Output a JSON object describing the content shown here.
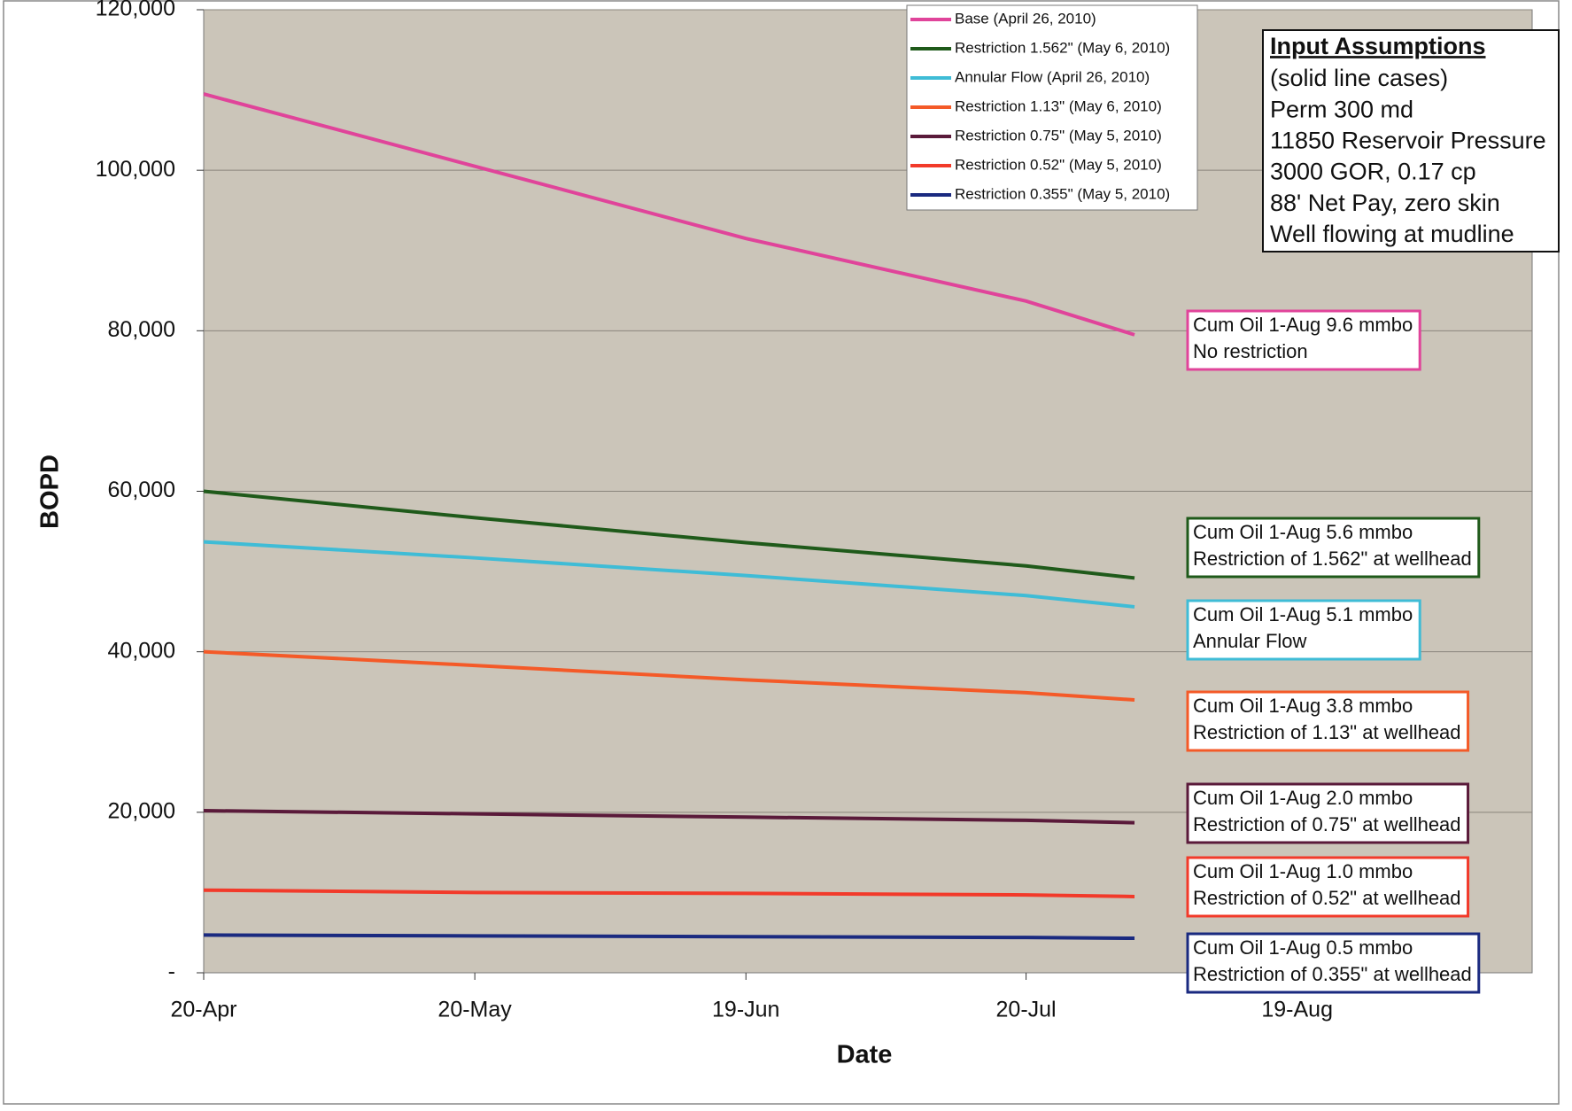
{
  "chart_data": {
    "type": "line",
    "x_label": "Date",
    "y_label": "BOPD",
    "x": [
      "20-Apr",
      "20-May",
      "19-Jun",
      "20-Jul",
      "1-Aug"
    ],
    "xlim": [
      "20-Apr",
      "14-Sep"
    ],
    "xticks": [
      "20-Apr",
      "20-May",
      "19-Jun",
      "20-Jul",
      "19-Aug"
    ],
    "ylim": [
      0,
      120000
    ],
    "yticks": [
      {
        "value": 0,
        "label": "-"
      },
      {
        "value": 20000,
        "label": "20,000"
      },
      {
        "value": 40000,
        "label": "40,000"
      },
      {
        "value": 60000,
        "label": "60,000"
      },
      {
        "value": 80000,
        "label": "80,000"
      },
      {
        "value": 100000,
        "label": "100,000"
      },
      {
        "value": 120000,
        "label": "120,000"
      }
    ],
    "grid": true,
    "series": [
      {
        "name": "Base (April 26, 2010)",
        "color": "#e0449a",
        "values": [
          109500,
          100500,
          91500,
          83700,
          79500
        ],
        "note": [
          "Cum Oil 1-Aug 9.6 mmbo",
          "No restriction"
        ]
      },
      {
        "name": "Restriction 1.562\" (May 6, 2010)",
        "color": "#1f5a1a",
        "values": [
          60000,
          56700,
          53600,
          50700,
          49200
        ],
        "note": [
          "Cum Oil 1-Aug 5.6 mmbo",
          "Restriction of 1.562\" at wellhead"
        ]
      },
      {
        "name": "Annular Flow  (April 26, 2010)",
        "color": "#3fbcd6",
        "values": [
          53700,
          51700,
          49500,
          47000,
          45600
        ],
        "note": [
          "Cum Oil 1-Aug 5.1 mmbo",
          "Annular Flow"
        ]
      },
      {
        "name": "Restriction 1.13\" (May 6, 2010)",
        "color": "#f45a28",
        "values": [
          40000,
          38300,
          36500,
          34900,
          34000
        ],
        "note": [
          "Cum Oil 1-Aug 3.8 mmbo",
          "Restriction of 1.13\" at wellhead"
        ]
      },
      {
        "name": "Restriction 0.75\" (May 5, 2010)",
        "color": "#5a1a3a",
        "values": [
          20200,
          19800,
          19400,
          19000,
          18700
        ],
        "note": [
          "Cum Oil 1-Aug 2.0 mmbo",
          "Restriction of 0.75\" at wellhead"
        ]
      },
      {
        "name": "Restriction 0.52\" (May 5, 2010)",
        "color": "#f23a2a",
        "values": [
          10300,
          10000,
          9900,
          9700,
          9500
        ],
        "note": [
          "Cum Oil 1-Aug 1.0 mmbo",
          "Restriction of 0.52\" at wellhead"
        ]
      },
      {
        "name": "Restriction 0.355\" (May 5, 2010)",
        "color": "#1a2a80",
        "values": [
          4700,
          4600,
          4500,
          4400,
          4300
        ],
        "note": [
          "Cum Oil 1-Aug 0.5 mmbo",
          "Restriction of 0.355\" at wellhead"
        ]
      }
    ],
    "input_assumptions": {
      "title": "Input Assumptions",
      "lines": [
        "(solid line cases)",
        "Perm 300 md",
        "11850 Reservoir Pressure",
        "3000 GOR, 0.17 cp",
        "88' Net Pay, zero skin",
        "Well flowing at mudline"
      ]
    }
  }
}
